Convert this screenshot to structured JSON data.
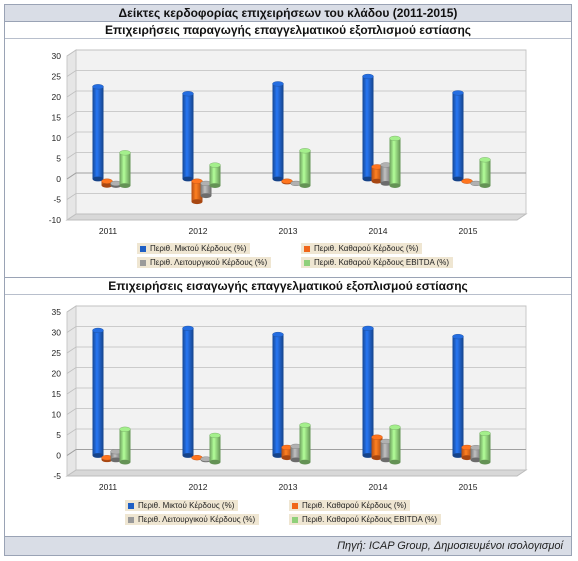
{
  "title": "Δείκτες κερδοφορίας επιχειρήσεων του κλάδου (2011-2015)",
  "source": "Πηγή: ICAP Group, Δημοσιευμένοι ισολογισμοί",
  "colors": {
    "gross": "#1f5fc4",
    "net": "#f0661a",
    "operating": "#9a9a9a",
    "ebitda": "#8fd07a"
  },
  "chart_data": [
    {
      "type": "bar",
      "title": "Επιχειρήσεις παραγωγής επαγγελματικού εξοπλισμού εστίασης",
      "categories": [
        "2011",
        "2012",
        "2013",
        "2014",
        "2015"
      ],
      "ylim": [
        -10,
        30
      ],
      "yticks": [
        "-10",
        "-5",
        "0",
        "5",
        "10",
        "15",
        "20",
        "25",
        "30"
      ],
      "grid": true,
      "legend_position": "bottom",
      "series": [
        {
          "name": "Περιθ. Μικτού Κέρδους (%)",
          "color_key": "gross",
          "values": [
            22.5,
            20.8,
            23.2,
            25.0,
            21.0
          ]
        },
        {
          "name": "Περιθ. Καθαρού Κέρδους (%)",
          "color_key": "net",
          "values": [
            -1.0,
            -5.0,
            -0.2,
            3.5,
            0.0
          ]
        },
        {
          "name": "Περιθ. Λειτουργικού Κέρδους (%)",
          "color_key": "operating",
          "values": [
            -0.5,
            -3.0,
            0.0,
            4.5,
            0.0
          ]
        },
        {
          "name": "Περιθ. Καθαρού Κέρδους EBITDA (%)",
          "color_key": "ebitda",
          "values": [
            8.0,
            5.0,
            8.5,
            11.5,
            6.3
          ]
        }
      ]
    },
    {
      "type": "bar",
      "title": "Επιχειρήσεις εισαγωγής επαγγελματικού εξοπλισμού εστίασης",
      "categories": [
        "2011",
        "2012",
        "2013",
        "2014",
        "2015"
      ],
      "ylim": [
        -5,
        35
      ],
      "yticks": [
        "-5",
        "0",
        "5",
        "10",
        "15",
        "20",
        "25",
        "30",
        "35"
      ],
      "grid": true,
      "legend_position": "bottom",
      "series": [
        {
          "name": "Περιθ. Μικτού Κέρδους (%)",
          "color_key": "gross",
          "values": [
            30.5,
            31.0,
            29.5,
            31.0,
            29.0
          ]
        },
        {
          "name": "Περιθ. Καθαρού Κέρδους (%)",
          "color_key": "net",
          "values": [
            -0.5,
            0.0,
            2.5,
            5.0,
            2.5
          ]
        },
        {
          "name": "Περιθ. Λειτουργικού Κέρδους (%)",
          "color_key": "operating",
          "values": [
            2.0,
            0.2,
            3.3,
            4.5,
            3.0
          ]
        },
        {
          "name": "Περιθ. Καθαρού Κέρδους EBITDA (%)",
          "color_key": "ebitda",
          "values": [
            8.0,
            6.5,
            9.0,
            8.5,
            7.0
          ]
        }
      ]
    }
  ]
}
